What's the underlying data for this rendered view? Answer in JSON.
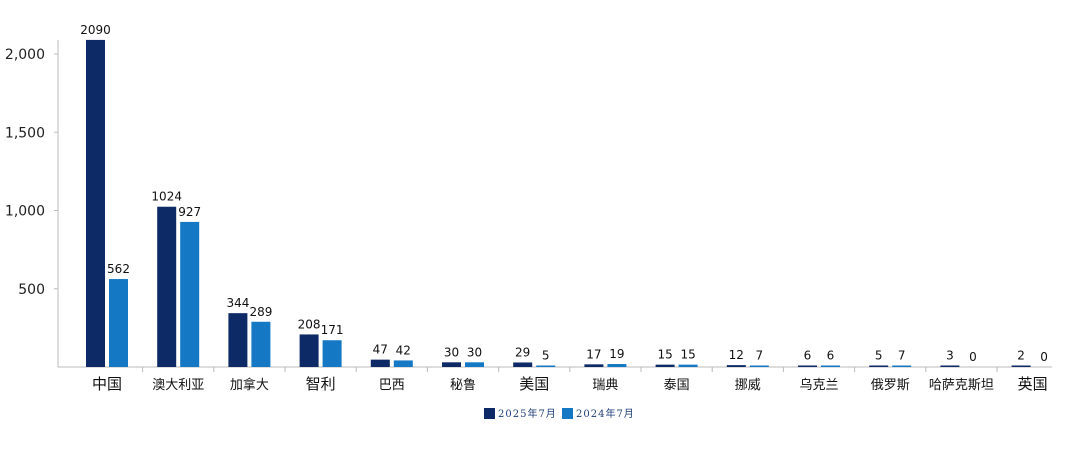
{
  "chart_data": {
    "type": "bar",
    "categories": [
      "中国",
      "澳大利亚",
      "加拿大",
      "智利",
      "巴西",
      "秘鲁",
      "美国",
      "瑞典",
      "泰国",
      "挪威",
      "乌克兰",
      "俄罗斯",
      "哈萨克斯坦",
      "英国"
    ],
    "series": [
      {
        "name": "2025年7月",
        "color": "#0d2a66",
        "values": [
          2090,
          1024,
          344,
          208,
          47,
          30,
          29,
          17,
          15,
          12,
          6,
          5,
          3,
          2
        ]
      },
      {
        "name": "2024年7月",
        "color": "#1578c4",
        "values": [
          562,
          927,
          289,
          171,
          42,
          30,
          5,
          19,
          15,
          7,
          6,
          7,
          0,
          0
        ]
      }
    ],
    "yticks": [
      {
        "value": 500,
        "label": "500"
      },
      {
        "value": 1000,
        "label": "1,000"
      },
      {
        "value": 1500,
        "label": "1,500"
      },
      {
        "value": 2000,
        "label": "2,000"
      }
    ],
    "ylim": [
      0,
      2200
    ],
    "title": "",
    "xlabel": "",
    "ylabel": "",
    "grid": false,
    "legend_position": "bottom-center"
  }
}
